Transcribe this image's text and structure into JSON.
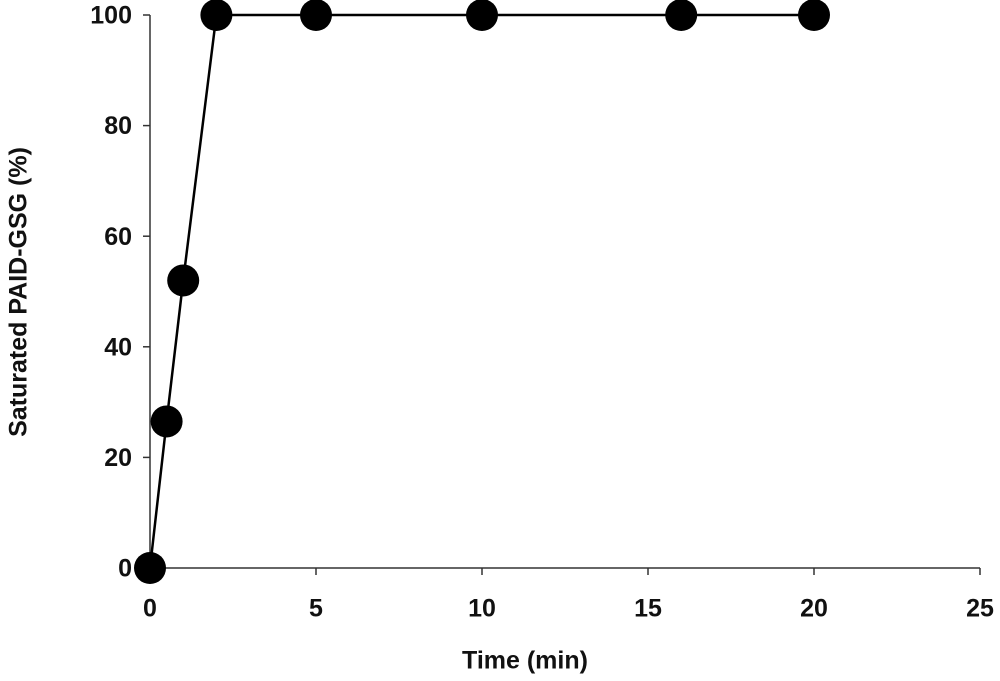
{
  "chart_data": {
    "type": "line",
    "x_label": "Time (min)",
    "y_label": "Saturated PAID-GSG (%)",
    "x": [
      0,
      0.5,
      1,
      2,
      5,
      10,
      16,
      20
    ],
    "series": [
      {
        "color": "#000000",
        "values": [
          0,
          26.5,
          52,
          100,
          100,
          100,
          100,
          100
        ]
      }
    ],
    "xlim": [
      0,
      25
    ],
    "xticks": [
      0,
      5,
      10,
      15,
      20,
      25
    ],
    "ylim": [
      0,
      100
    ],
    "yticks": [
      0,
      20,
      40,
      60,
      80,
      100
    ],
    "grid": false
  }
}
